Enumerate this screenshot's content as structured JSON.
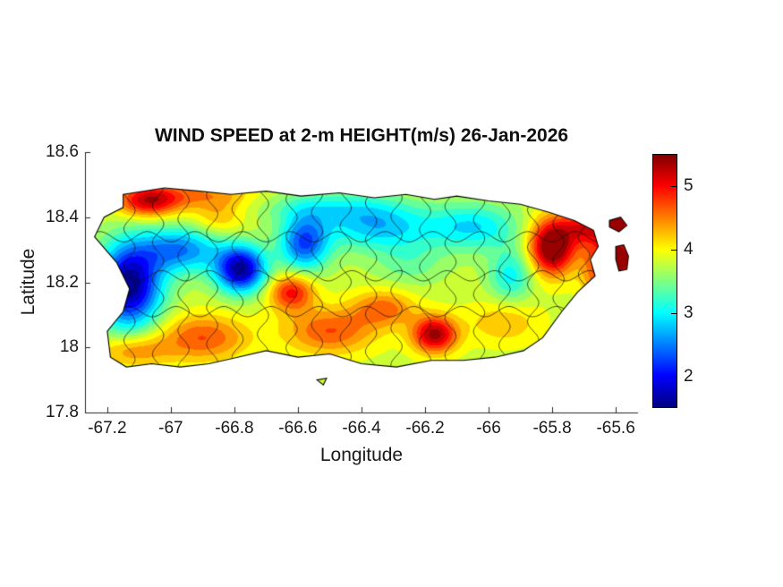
{
  "figure": {
    "title": "WIND SPEED at 2-m HEIGHT(m/s) 26-Jan-2026",
    "xlabel": "Longitude",
    "ylabel": "Latitude",
    "background": "#ffffff",
    "text_color": "#1a1a1a"
  },
  "chart_data": {
    "type": "heatmap",
    "title": "WIND SPEED at 2-m HEIGHT(m/s) 26-Jan-2026",
    "variable": "wind speed at 2-m height",
    "units": "m/s",
    "date": "26-Jan-2026",
    "region": "Puerto Rico",
    "xlabel": "Longitude",
    "ylabel": "Latitude",
    "xlim": [
      -67.27,
      -65.53
    ],
    "ylim": [
      17.8,
      18.6
    ],
    "xticks": [
      -67.2,
      -67,
      -66.8,
      -66.6,
      -66.4,
      -66.2,
      -66,
      -65.8,
      -65.6
    ],
    "xtick_labels": [
      "-67.2",
      "-67",
      "-66.8",
      "-66.6",
      "-66.4",
      "-66.2",
      "-66",
      "-65.8",
      "-65.6"
    ],
    "yticks": [
      18.6,
      18.4,
      18.2,
      18,
      17.8
    ],
    "ytick_labels": [
      "18.6",
      "18.4",
      "18.2",
      "18",
      "17.8"
    ],
    "colormap": "jet",
    "colormap_stops": [
      "#000080",
      "#0000FF",
      "#0080FF",
      "#00FFFF",
      "#80FF80",
      "#FFFF00",
      "#FF8000",
      "#FF0000",
      "#800000"
    ],
    "clim": [
      1.5,
      5.5
    ],
    "contour_interval": 0.2,
    "colorbar_ticks": [
      2,
      3,
      4,
      5
    ],
    "colorbar_tick_labels": [
      "2",
      "3",
      "4",
      "5"
    ],
    "overlays": {
      "municipality_boundaries": true,
      "coastline": true
    },
    "base_value": 3.8,
    "features": [
      {
        "lon": -67.07,
        "lat": 18.45,
        "amp": 1.4,
        "rx": 0.07,
        "ry": 0.035
      },
      {
        "lon": -66.9,
        "lat": 18.47,
        "amp": 0.6,
        "rx": 0.12,
        "ry": 0.03
      },
      {
        "lon": -67.13,
        "lat": 18.19,
        "amp": -2.3,
        "rx": 0.07,
        "ry": 0.09
      },
      {
        "lon": -66.97,
        "lat": 18.3,
        "amp": -1.3,
        "rx": 0.09,
        "ry": 0.05
      },
      {
        "lon": -66.78,
        "lat": 18.24,
        "amp": -2.2,
        "rx": 0.055,
        "ry": 0.05
      },
      {
        "lon": -66.58,
        "lat": 18.32,
        "amp": -1.5,
        "rx": 0.055,
        "ry": 0.06
      },
      {
        "lon": -66.35,
        "lat": 18.37,
        "amp": -1.0,
        "rx": 0.12,
        "ry": 0.05
      },
      {
        "lon": -66.05,
        "lat": 18.37,
        "amp": -0.9,
        "rx": 0.1,
        "ry": 0.05
      },
      {
        "lon": -66.5,
        "lat": 18.43,
        "amp": -0.6,
        "rx": 0.15,
        "ry": 0.035
      },
      {
        "lon": -65.8,
        "lat": 18.31,
        "amp": 2.0,
        "rx": 0.05,
        "ry": 0.06
      },
      {
        "lon": -65.7,
        "lat": 18.37,
        "amp": 1.0,
        "rx": 0.05,
        "ry": 0.04
      },
      {
        "lon": -66.62,
        "lat": 18.17,
        "amp": 1.2,
        "rx": 0.05,
        "ry": 0.04
      },
      {
        "lon": -66.9,
        "lat": 18.03,
        "amp": 0.9,
        "rx": 0.1,
        "ry": 0.05
      },
      {
        "lon": -66.5,
        "lat": 18.05,
        "amp": 0.9,
        "rx": 0.1,
        "ry": 0.05
      },
      {
        "lon": -66.17,
        "lat": 18.04,
        "amp": 1.6,
        "rx": 0.05,
        "ry": 0.04
      },
      {
        "lon": -66.33,
        "lat": 18.12,
        "amp": 0.8,
        "rx": 0.07,
        "ry": 0.04
      },
      {
        "lon": -65.95,
        "lat": 18.08,
        "amp": 0.5,
        "rx": 0.08,
        "ry": 0.05
      },
      {
        "lon": -66.85,
        "lat": 18.4,
        "amp": 0.5,
        "rx": 0.06,
        "ry": 0.04
      },
      {
        "lon": -65.6,
        "lat": 18.38,
        "amp": 1.6,
        "rx": 0.04,
        "ry": 0.03
      },
      {
        "lon": -65.58,
        "lat": 18.27,
        "amp": 1.6,
        "rx": 0.035,
        "ry": 0.05
      },
      {
        "lon": -65.65,
        "lat": 18.25,
        "amp": 1.0,
        "rx": 0.04,
        "ry": 0.08
      },
      {
        "lon": -66.25,
        "lat": 18.26,
        "amp": -0.4,
        "rx": 0.08,
        "ry": 0.05
      },
      {
        "lon": -65.93,
        "lat": 18.22,
        "amp": -0.8,
        "rx": 0.05,
        "ry": 0.06
      },
      {
        "lon": -67.12,
        "lat": 17.99,
        "amp": 0.7,
        "rx": 0.08,
        "ry": 0.035
      }
    ],
    "coastline_main": [
      [
        -67.15,
        18.47
      ],
      [
        -67.02,
        18.49
      ],
      [
        -66.91,
        18.48
      ],
      [
        -66.81,
        18.47
      ],
      [
        -66.7,
        18.48
      ],
      [
        -66.59,
        18.465
      ],
      [
        -66.47,
        18.475
      ],
      [
        -66.36,
        18.46
      ],
      [
        -66.26,
        18.47
      ],
      [
        -66.17,
        18.455
      ],
      [
        -66.1,
        18.465
      ],
      [
        -66.0,
        18.45
      ],
      [
        -65.9,
        18.44
      ],
      [
        -65.81,
        18.415
      ],
      [
        -65.73,
        18.39
      ],
      [
        -65.67,
        18.36
      ],
      [
        -65.655,
        18.31
      ],
      [
        -65.68,
        18.27
      ],
      [
        -65.665,
        18.22
      ],
      [
        -65.72,
        18.17
      ],
      [
        -65.77,
        18.11
      ],
      [
        -65.83,
        18.03
      ],
      [
        -65.89,
        17.99
      ],
      [
        -65.98,
        17.97
      ],
      [
        -66.08,
        17.96
      ],
      [
        -66.18,
        17.96
      ],
      [
        -66.29,
        17.94
      ],
      [
        -66.4,
        17.95
      ],
      [
        -66.5,
        17.98
      ],
      [
        -66.6,
        17.97
      ],
      [
        -66.7,
        17.99
      ],
      [
        -66.79,
        17.97
      ],
      [
        -66.88,
        17.95
      ],
      [
        -66.97,
        17.94
      ],
      [
        -67.06,
        17.95
      ],
      [
        -67.14,
        17.94
      ],
      [
        -67.19,
        17.97
      ],
      [
        -67.2,
        18.05
      ],
      [
        -67.15,
        18.11
      ],
      [
        -67.13,
        18.18
      ],
      [
        -67.17,
        18.26
      ],
      [
        -67.24,
        18.34
      ],
      [
        -67.21,
        18.4
      ],
      [
        -67.15,
        18.43
      ]
    ],
    "islets": [
      [
        [
          -65.62,
          18.39
        ],
        [
          -65.585,
          18.4
        ],
        [
          -65.565,
          18.375
        ],
        [
          -65.59,
          18.355
        ],
        [
          -65.62,
          18.37
        ]
      ],
      [
        [
          -65.6,
          18.31
        ],
        [
          -65.575,
          18.315
        ],
        [
          -65.56,
          18.28
        ],
        [
          -65.565,
          18.24
        ],
        [
          -65.59,
          18.235
        ],
        [
          -65.6,
          18.27
        ]
      ],
      [
        [
          -66.54,
          17.9
        ],
        [
          -66.51,
          17.905
        ],
        [
          -66.52,
          17.885
        ]
      ]
    ],
    "boundary_lons": [
      -67.13,
      -67.04,
      -66.96,
      -66.87,
      -66.79,
      -66.71,
      -66.62,
      -66.54,
      -66.45,
      -66.37,
      -66.29,
      -66.2,
      -66.12,
      -66.03,
      -65.95,
      -65.86,
      -65.78,
      -65.7
    ],
    "boundary_lats": [
      18.11,
      18.22,
      18.34
    ]
  }
}
